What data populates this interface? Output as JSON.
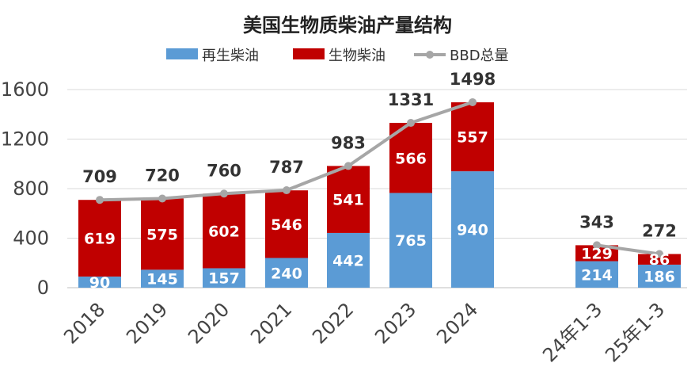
{
  "chart_data": {
    "type": "bar",
    "title": "美国生物质柴油产量结构",
    "categories": [
      "2018",
      "2019",
      "2020",
      "2021",
      "2022",
      "2023",
      "2024",
      "24年1-3",
      "25年1-3"
    ],
    "series": [
      {
        "name": "再生柴油",
        "type": "bar",
        "stacked": true,
        "color": "#5B9BD5",
        "values": [
          90,
          145,
          157,
          240,
          442,
          765,
          940,
          214,
          186
        ]
      },
      {
        "name": "生物柴油",
        "type": "bar",
        "stacked": true,
        "color": "#C00000",
        "values": [
          619,
          575,
          602,
          546,
          541,
          566,
          557,
          129,
          86
        ]
      },
      {
        "name": "BBD总量",
        "type": "line",
        "color": "#A6A6A6",
        "values": [
          709,
          720,
          760,
          787,
          983,
          1331,
          1498,
          343,
          272
        ]
      }
    ],
    "yticks": [
      "0",
      "400",
      "800",
      "1200",
      "1600"
    ],
    "ylim": [
      0,
      1600
    ],
    "xlabel": "",
    "ylabel": "",
    "grid": true,
    "legend": "top"
  }
}
